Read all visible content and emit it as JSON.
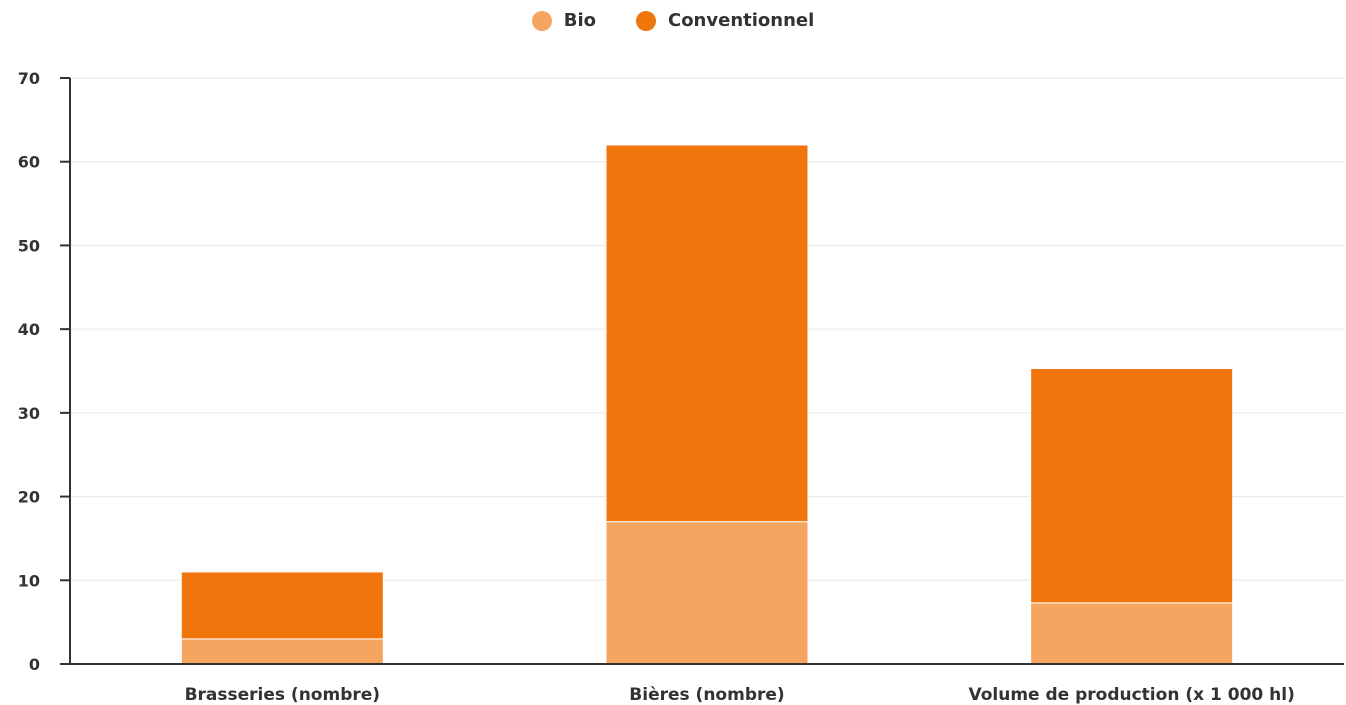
{
  "chart_data": {
    "type": "bar",
    "stacked": true,
    "categories": [
      "Brasseries (nombre)",
      "Bières (nombre)",
      "Volume de production (x 1 000 hl)"
    ],
    "series": [
      {
        "name": "Bio",
        "color": "#F5A55F",
        "values": [
          3,
          17,
          7.3
        ]
      },
      {
        "name": "Conventionnel",
        "color": "#F0750D",
        "values": [
          8,
          45,
          28
        ]
      }
    ],
    "ylim": [
      0,
      70
    ],
    "yticks": [
      0,
      10,
      20,
      30,
      40,
      50,
      60,
      70
    ],
    "grid": true,
    "legend": "top-center"
  }
}
